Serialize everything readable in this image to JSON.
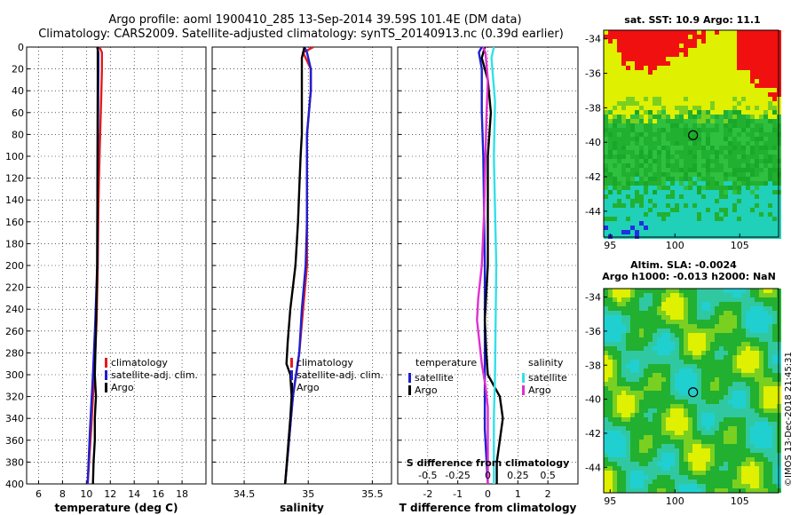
{
  "header": {
    "line1": "Argo profile: aoml 1900410_285 13-Sep-2014 39.59S 101.4E (DM data)",
    "line2": "Climatology: CARS2009. Satellite-adjusted climatology: synTS_20140913.nc (0.39d earlier)"
  },
  "colors": {
    "climatology": "#e41a1c",
    "satellite": "#1f1fd0",
    "argo": "#000000",
    "sat_salinity": "#33e0e8",
    "argo_salinity": "#e030d0"
  },
  "chart_data": [
    {
      "type": "line",
      "id": "temperature",
      "xlabel": "temperature (deg C)",
      "ylabel": "",
      "xlim": [
        5,
        20
      ],
      "ylim": [
        400,
        0
      ],
      "xticks": [
        6,
        8,
        10,
        12,
        14,
        16,
        18
      ],
      "yticks": [
        0,
        20,
        40,
        60,
        80,
        100,
        120,
        140,
        160,
        180,
        200,
        220,
        240,
        260,
        280,
        300,
        320,
        340,
        360,
        380,
        400
      ],
      "grid": true,
      "legend": [
        "climatology",
        "satellite-adj. clim.",
        "Argo"
      ],
      "legend_position": "lower-center",
      "series": [
        {
          "name": "climatology",
          "color": "#e41a1c",
          "depth": [
            0,
            5,
            20,
            40,
            60,
            80,
            100,
            120,
            150,
            200,
            250,
            300,
            350,
            400
          ],
          "values": [
            11.1,
            11.3,
            11.3,
            11.25,
            11.2,
            11.15,
            11.1,
            11.05,
            11.0,
            10.95,
            10.85,
            10.65,
            10.4,
            10.1
          ]
        },
        {
          "name": "satellite-adj. clim.",
          "color": "#1f1fd0",
          "depth": [
            0,
            5,
            20,
            60,
            100,
            150,
            200,
            250,
            300,
            350,
            400
          ],
          "values": [
            10.9,
            11.0,
            11.0,
            10.98,
            10.95,
            10.92,
            10.9,
            10.75,
            10.55,
            10.3,
            10.1
          ]
        },
        {
          "name": "Argo",
          "color": "#000000",
          "depth": [
            0,
            5,
            30,
            80,
            140,
            200,
            230,
            260,
            280,
            300,
            310,
            320,
            330,
            340,
            360,
            380,
            400
          ],
          "values": [
            10.95,
            10.95,
            10.95,
            10.93,
            10.92,
            10.9,
            10.85,
            10.8,
            10.75,
            10.7,
            10.75,
            10.8,
            10.75,
            10.7,
            10.7,
            10.6,
            10.55
          ]
        }
      ]
    },
    {
      "type": "line",
      "id": "salinity",
      "xlabel": "salinity",
      "ylabel": "",
      "xlim": [
        34.25,
        35.65
      ],
      "ylim": [
        400,
        0
      ],
      "xticks": [
        34.5,
        35,
        35.5
      ],
      "grid": true,
      "legend": [
        "climatology",
        "satellite-adj. clim.",
        "Argo"
      ],
      "legend_position": "lower-center",
      "series": [
        {
          "name": "climatology",
          "color": "#e41a1c",
          "depth": [
            0,
            5,
            20,
            40,
            80,
            120,
            160,
            200,
            240,
            280,
            320,
            360,
            400
          ],
          "values": [
            35.04,
            34.96,
            35.02,
            35.02,
            34.99,
            34.99,
            34.99,
            34.99,
            34.96,
            34.93,
            34.88,
            34.85,
            34.82
          ]
        },
        {
          "name": "satellite-adj. clim.",
          "color": "#1f1fd0",
          "depth": [
            0,
            5,
            20,
            40,
            80,
            120,
            160,
            200,
            240,
            280,
            320,
            360,
            400
          ],
          "values": [
            34.97,
            34.99,
            35.02,
            35.02,
            34.99,
            34.99,
            34.99,
            34.98,
            34.95,
            34.93,
            34.88,
            34.85,
            34.82
          ]
        },
        {
          "name": "Argo",
          "color": "#000000",
          "depth": [
            0,
            10,
            30,
            60,
            80,
            100,
            130,
            160,
            200,
            220,
            240,
            270,
            290,
            300,
            320,
            340,
            370,
            400
          ],
          "values": [
            34.97,
            34.95,
            34.95,
            34.95,
            34.95,
            34.94,
            34.93,
            34.92,
            34.9,
            34.88,
            34.86,
            34.84,
            34.83,
            34.86,
            34.87,
            34.86,
            34.84,
            34.82
          ]
        }
      ]
    },
    {
      "type": "line",
      "id": "difference",
      "xlabel": "T difference from climatology",
      "xlabel_top": "S difference from climatology",
      "xlim": [
        -3,
        3
      ],
      "ylim": [
        400,
        0
      ],
      "xticks": [
        -2,
        -1,
        0,
        1,
        2
      ],
      "xticks_salinity": [
        "-0.5",
        "-0.25",
        "0",
        "0.25",
        "0.5"
      ],
      "xticks_salinity_values": [
        -0.5,
        -0.25,
        0,
        0.25,
        0.5
      ],
      "grid": true,
      "legend_temperature_title": "temperature",
      "legend_salinity_title": "salinity",
      "legend_temperature": [
        "satellite",
        "Argo"
      ],
      "legend_salinity": [
        "satellite",
        "Argo"
      ],
      "series": [
        {
          "name": "temperature satellite",
          "color": "#1f1fd0",
          "depth": [
            0,
            5,
            20,
            60,
            100,
            200,
            300,
            350,
            400
          ],
          "values": [
            -0.2,
            -0.3,
            -0.2,
            -0.2,
            -0.15,
            -0.1,
            -0.1,
            -0.1,
            0.0
          ]
        },
        {
          "name": "temperature Argo",
          "color": "#000000",
          "depth": [
            0,
            10,
            30,
            60,
            100,
            150,
            200,
            250,
            280,
            300,
            320,
            340,
            360,
            380,
            400
          ],
          "values": [
            -0.1,
            -0.2,
            0.0,
            0.1,
            0.0,
            0.0,
            0.0,
            -0.1,
            -0.05,
            0.0,
            0.4,
            0.5,
            0.4,
            0.3,
            0.3
          ]
        },
        {
          "name": "salinity satellite",
          "color": "#33e0e8",
          "depth": [
            0,
            10,
            50,
            100,
            200,
            300,
            340,
            370,
            400
          ],
          "values": [
            0.05,
            0.03,
            0.06,
            0.05,
            0.07,
            0.06,
            0.05,
            0.05,
            0.05
          ]
        },
        {
          "name": "salinity Argo",
          "color": "#e030d0",
          "depth": [
            0,
            5,
            30,
            60,
            100,
            150,
            200,
            230,
            250,
            270,
            290,
            310,
            330,
            350,
            380,
            400
          ],
          "values": [
            -0.04,
            -0.02,
            0.0,
            -0.01,
            -0.02,
            -0.03,
            -0.05,
            -0.08,
            -0.09,
            -0.07,
            -0.05,
            -0.02,
            0.0,
            0.0,
            0.0,
            0.0
          ]
        }
      ]
    },
    {
      "type": "heatmap",
      "id": "sst_map",
      "title": "sat. SST: 10.9 Argo: 11.1",
      "xlim": [
        94.5,
        108
      ],
      "ylim": [
        -45.5,
        -33.5
      ],
      "xticks": [
        95,
        100,
        105
      ],
      "yticks": [
        -34,
        -36,
        -38,
        -40,
        -42,
        -44
      ],
      "marker": {
        "lon": 101.4,
        "lat": -39.59
      }
    },
    {
      "type": "heatmap",
      "id": "sla_map",
      "title": "Altim. SLA: -0.0024",
      "subtitle": "Argo h1000: -0.013 h2000: NaN",
      "xlim": [
        94.5,
        108
      ],
      "ylim": [
        -45.5,
        -33.5
      ],
      "xticks": [
        95,
        100,
        105
      ],
      "yticks": [
        -34,
        -36,
        -38,
        -40,
        -42,
        -44
      ],
      "marker": {
        "lon": 101.4,
        "lat": -39.59
      }
    }
  ],
  "footer": {
    "stamp": "©IMOS 13-Dec-2018 21:45:31"
  }
}
